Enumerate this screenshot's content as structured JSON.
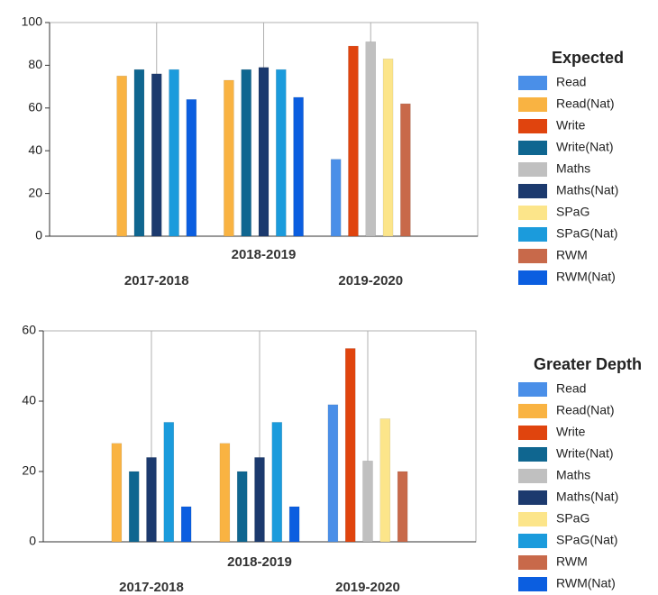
{
  "chart_data": [
    {
      "type": "bar",
      "legend_title": "Expected",
      "categories": [
        "2017-2018",
        "2018-2019",
        "2019-2020"
      ],
      "ylim": [
        0,
        100
      ],
      "yticks": [
        0,
        20,
        40,
        60,
        80,
        100
      ],
      "series": [
        {
          "name": "Read",
          "color": "#4a8fe8",
          "values": [
            null,
            null,
            36
          ]
        },
        {
          "name": "Read(Nat)",
          "color": "#f9b342",
          "values": [
            75,
            73,
            null
          ]
        },
        {
          "name": "Write",
          "color": "#e0440e",
          "values": [
            null,
            null,
            89
          ]
        },
        {
          "name": "Write(Nat)",
          "color": "#0f6690",
          "values": [
            78,
            78,
            null
          ]
        },
        {
          "name": "Maths",
          "color": "#c0c0c0",
          "values": [
            null,
            null,
            91
          ]
        },
        {
          "name": "Maths(Nat)",
          "color": "#1c3a6e",
          "values": [
            76,
            79,
            null
          ]
        },
        {
          "name": "SPaG",
          "color": "#fce58a",
          "values": [
            null,
            null,
            83
          ]
        },
        {
          "name": "SPaG(Nat)",
          "color": "#1b9bdc",
          "values": [
            78,
            78,
            null
          ]
        },
        {
          "name": "RWM",
          "color": "#c8694a",
          "values": [
            null,
            null,
            62
          ]
        },
        {
          "name": "RWM(Nat)",
          "color": "#0b5ee0",
          "values": [
            64,
            65,
            null
          ]
        }
      ]
    },
    {
      "type": "bar",
      "legend_title": "Greater Depth",
      "categories": [
        "2017-2018",
        "2018-2019",
        "2019-2020"
      ],
      "ylim": [
        0,
        60
      ],
      "yticks": [
        0,
        20,
        40,
        60
      ],
      "series": [
        {
          "name": "Read",
          "color": "#4a8fe8",
          "values": [
            null,
            null,
            39
          ]
        },
        {
          "name": "Read(Nat)",
          "color": "#f9b342",
          "values": [
            28,
            28,
            null
          ]
        },
        {
          "name": "Write",
          "color": "#e0440e",
          "values": [
            null,
            null,
            55
          ]
        },
        {
          "name": "Write(Nat)",
          "color": "#0f6690",
          "values": [
            20,
            20,
            null
          ]
        },
        {
          "name": "Maths",
          "color": "#c0c0c0",
          "values": [
            null,
            null,
            23
          ]
        },
        {
          "name": "Maths(Nat)",
          "color": "#1c3a6e",
          "values": [
            24,
            24,
            null
          ]
        },
        {
          "name": "SPaG",
          "color": "#fce58a",
          "values": [
            null,
            null,
            35
          ]
        },
        {
          "name": "SPaG(Nat)",
          "color": "#1b9bdc",
          "values": [
            34,
            34,
            null
          ]
        },
        {
          "name": "RWM",
          "color": "#c8694a",
          "values": [
            null,
            null,
            20
          ]
        },
        {
          "name": "RWM(Nat)",
          "color": "#0b5ee0",
          "values": [
            10,
            10,
            null
          ]
        }
      ]
    }
  ]
}
